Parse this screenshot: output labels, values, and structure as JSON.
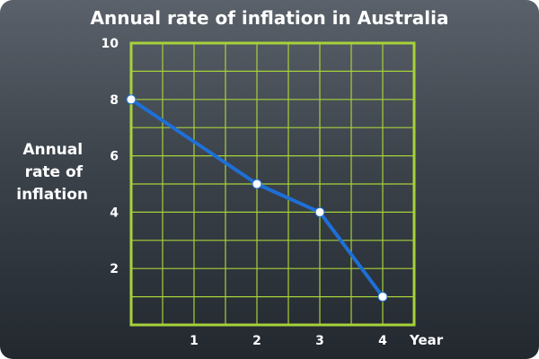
{
  "chart_data": {
    "type": "line",
    "title": "Annual rate of inflation in Australia",
    "xlabel": "Year",
    "ylabel_lines": [
      "Annual",
      "rate of",
      "inflation"
    ],
    "xlim": [
      0,
      4.5
    ],
    "ylim": [
      0,
      10
    ],
    "x_ticks": [
      1,
      2,
      3,
      4
    ],
    "y_ticks": [
      2,
      4,
      6,
      8,
      10
    ],
    "x_grid_step": 0.5,
    "y_grid_step": 1,
    "grid": true,
    "series": [
      {
        "values": [
          {
            "x": 0,
            "y": 8
          },
          {
            "x": 2,
            "y": 5
          },
          {
            "x": 3,
            "y": 4
          },
          {
            "x": 4,
            "y": 1
          }
        ]
      }
    ],
    "colors": {
      "grid": "#a7d13a",
      "line": "#1e6fd6",
      "marker_fill": "#ffffff",
      "text": "#ffffff"
    }
  }
}
